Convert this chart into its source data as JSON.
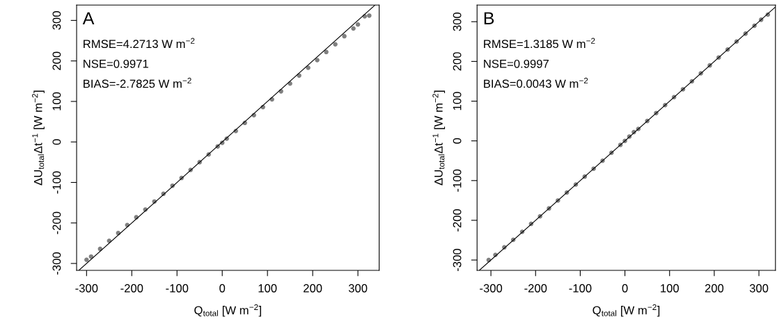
{
  "chart_data": [
    {
      "type": "scatter",
      "xlabel": "Q$_{total}$ [W m$^{−2}$]",
      "ylabel": "ΔU$_{total}$Δt$^{−1}$ [W m$^{−2}$]",
      "annotations": [
        "A",
        "RMSE=4.2713 W m$^{−2}$",
        "NSE=0.9971",
        "BIAS=-2.7825 W m$^{−2}$"
      ],
      "xlim": [
        -322,
        347
      ],
      "ylim": [
        -317,
        338
      ],
      "xticks": [
        -300,
        -200,
        -100,
        0,
        100,
        200,
        300
      ],
      "yticks": [
        -300,
        -200,
        -100,
        0,
        100,
        200,
        300
      ],
      "grid": false,
      "series": [
        {
          "marker": "circle",
          "color": "#808080",
          "x": [
            -300,
            -290,
            -270,
            -250,
            -230,
            -210,
            -190,
            -170,
            -150,
            -130,
            -110,
            -90,
            -70,
            -50,
            -30,
            -10,
            0,
            10,
            30,
            50,
            70,
            90,
            110,
            130,
            150,
            170,
            190,
            210,
            230,
            250,
            270,
            290,
            300,
            315,
            325
          ],
          "values": [
            -291,
            -283,
            -264,
            -244,
            -225,
            -205,
            -186,
            -167,
            -147,
            -128,
            -108,
            -89,
            -69,
            -50,
            -31,
            -11,
            -2,
            8,
            27,
            47,
            66,
            86,
            105,
            125,
            144,
            164,
            183,
            202,
            222,
            241,
            261,
            280,
            290,
            310,
            312
          ]
        },
        {
          "type": "line",
          "color": "#000000",
          "x": [
            -317,
            338
          ],
          "values": [
            -317,
            338
          ]
        }
      ]
    },
    {
      "type": "scatter",
      "xlabel": "Q$_{total}$ [W m$^{−2}$]",
      "ylabel": "ΔU$_{total}$Δt$^{−1}$ [W m$^{−2}$]",
      "annotations": [
        "B",
        "RMSE=1.3185 W m$^{−2}$",
        "NSE=0.9997",
        "BIAS=0.0043 W m$^{−2}$"
      ],
      "xlim": [
        -331,
        337
      ],
      "ylim": [
        -326,
        342
      ],
      "xticks": [
        -300,
        -200,
        -100,
        0,
        100,
        200,
        300
      ],
      "yticks": [
        -300,
        -200,
        -100,
        0,
        100,
        200,
        300
      ],
      "grid": false,
      "series": [
        {
          "marker": "circle",
          "color": "#808080",
          "x": [
            -305,
            -290,
            -270,
            -250,
            -230,
            -210,
            -190,
            -170,
            -150,
            -130,
            -110,
            -90,
            -70,
            -50,
            -30,
            -10,
            0,
            10,
            20,
            30,
            50,
            70,
            90,
            110,
            130,
            150,
            170,
            190,
            210,
            230,
            250,
            270,
            290,
            305,
            320
          ],
          "values": [
            -300,
            -287,
            -268,
            -249,
            -229,
            -209,
            -190,
            -170,
            -150,
            -130,
            -110,
            -90,
            -70,
            -50,
            -30,
            -10,
            0,
            11,
            22,
            30,
            50,
            70,
            90,
            110,
            130,
            150,
            170,
            190,
            210,
            230,
            250,
            270,
            290,
            305,
            318
          ]
        },
        {
          "type": "line",
          "color": "#000000",
          "x": [
            -326,
            337
          ],
          "values": [
            -326,
            337
          ]
        }
      ]
    }
  ]
}
